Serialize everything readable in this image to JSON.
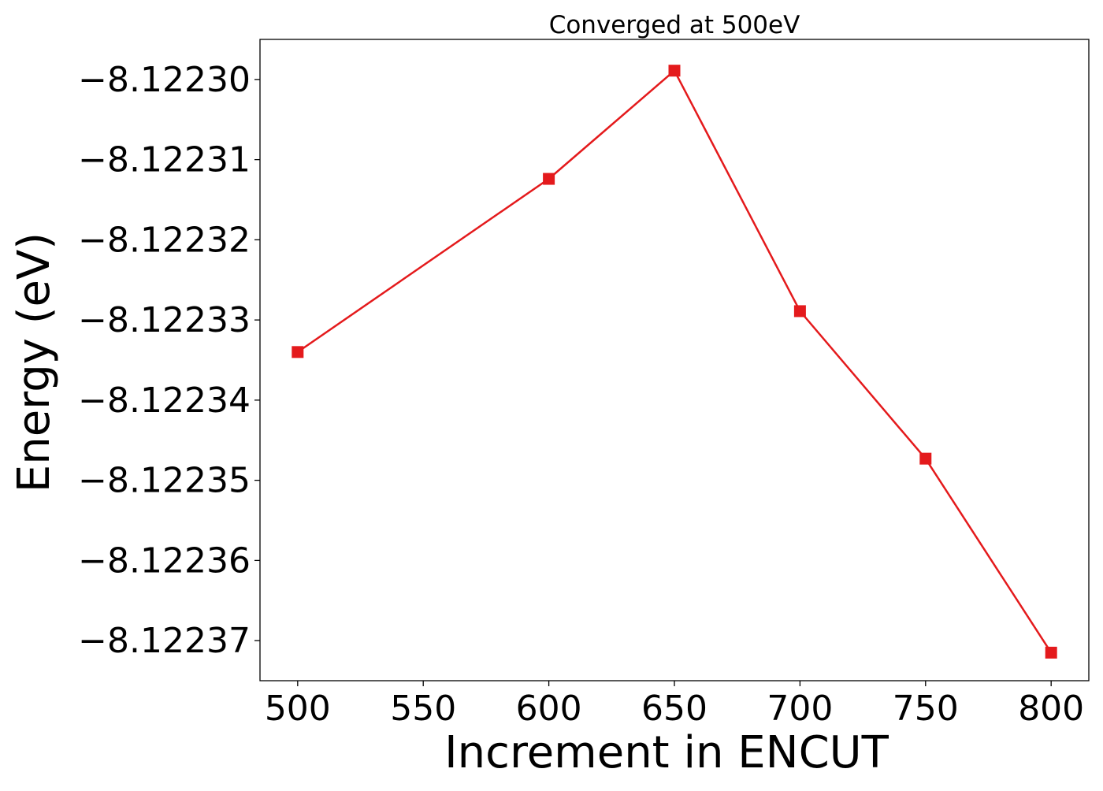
{
  "chart_data": {
    "type": "line",
    "title": "Converged at 500eV",
    "xlabel": "Increment in ENCUT",
    "ylabel": "Energy (eV)",
    "xlim": [
      485,
      815
    ],
    "ylim": [
      -8.122375,
      -8.122295
    ],
    "x_ticks": [
      500,
      550,
      600,
      650,
      700,
      750,
      800
    ],
    "x_tick_labels": [
      "500",
      "550",
      "600",
      "650",
      "700",
      "750",
      "800"
    ],
    "y_ticks": [
      -8.1223,
      -8.12231,
      -8.12232,
      -8.12233,
      -8.12234,
      -8.12235,
      -8.12236,
      -8.12237
    ],
    "y_tick_labels": [
      "−8.12230",
      "−8.12231",
      "−8.12232",
      "−8.12233",
      "−8.12234",
      "−8.12235",
      "−8.12236",
      "−8.12237"
    ],
    "grid": false,
    "series": [
      {
        "color": "#e41a1c",
        "marker": "square",
        "x": [
          500,
          600,
          650,
          700,
          750,
          800
        ],
        "y": [
          -8.122334,
          -8.1223124,
          -8.1222989,
          -8.1223289,
          -8.1223473,
          -8.1223715
        ]
      }
    ]
  }
}
